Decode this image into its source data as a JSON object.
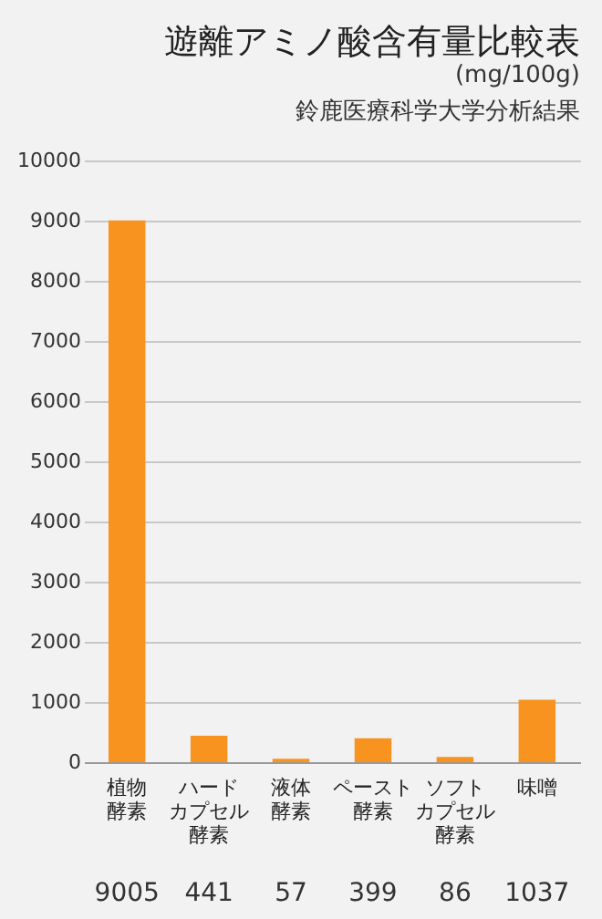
{
  "chart_data": {
    "type": "bar",
    "title": "遊離アミノ酸含有量比較表",
    "subtitle": "(mg/100g)",
    "annotations": [
      "鈴鹿医療科学大学分析結果"
    ],
    "categories": [
      "植物酵素",
      "ハードカプセル酵素",
      "液体酵素",
      "ペースト酵素",
      "ソフトカプセル酵素",
      "味噌"
    ],
    "values": [
      9005,
      441,
      57,
      399,
      86,
      1037
    ],
    "color": "#f7931e",
    "ylim": [
      0,
      10000
    ],
    "yticks": [
      0,
      1000,
      2000,
      3000,
      4000,
      5000,
      6000,
      7000,
      8000,
      9000,
      10000
    ],
    "grid": "y",
    "data_labels": true
  }
}
